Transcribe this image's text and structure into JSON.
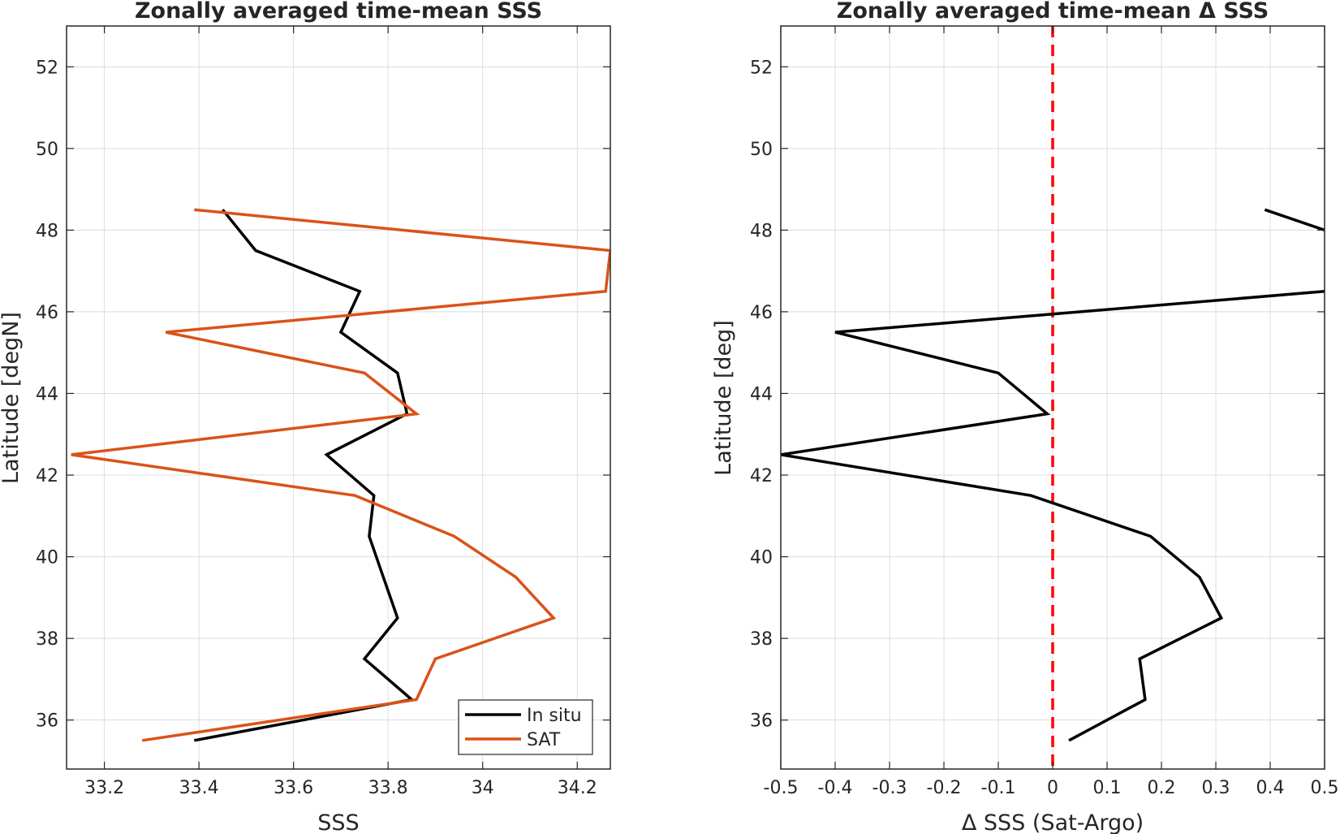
{
  "chart_data": [
    {
      "type": "line",
      "title": "Zonally averaged time-mean SSS",
      "xlabel": "SSS",
      "ylabel": "Latitude [degN]",
      "xlim": [
        33.12,
        34.27
      ],
      "ylim": [
        34.8,
        53.0
      ],
      "xticks": [
        33.2,
        33.4,
        33.6,
        33.8,
        34.0,
        34.2
      ],
      "xtick_labels": [
        "33.2",
        "33.4",
        "33.6",
        "33.8",
        "34",
        "34.2"
      ],
      "yticks": [
        36,
        38,
        40,
        42,
        44,
        46,
        48,
        50,
        52
      ],
      "ytick_labels": [
        "36",
        "38",
        "40",
        "42",
        "44",
        "46",
        "48",
        "50",
        "52"
      ],
      "grid": true,
      "legend_position": "bottom-right",
      "series": [
        {
          "name": "In situ",
          "color": "#000000",
          "y": [
            35.5,
            36.5,
            37.5,
            38.5,
            39.5,
            40.5,
            41.5,
            42.5,
            43.5,
            44.5,
            45.5,
            46.5,
            47.5,
            48.5
          ],
          "x": [
            33.39,
            33.85,
            33.75,
            33.82,
            33.79,
            33.76,
            33.77,
            33.67,
            33.84,
            33.82,
            33.7,
            33.74,
            33.52,
            33.45
          ]
        },
        {
          "name": "SAT",
          "color": "#D95319",
          "y": [
            35.5,
            36.5,
            37.5,
            38.5,
            39.5,
            40.5,
            41.5,
            42.5,
            43.5,
            44.5,
            45.5,
            46.5,
            47.5,
            48.5
          ],
          "x": [
            33.28,
            33.86,
            33.9,
            34.15,
            34.07,
            33.94,
            33.73,
            33.13,
            33.86,
            33.75,
            33.33,
            34.26,
            34.27,
            33.39
          ]
        }
      ]
    },
    {
      "type": "line",
      "title": "Zonally averaged time-mean Δ SSS",
      "xlabel": "Δ SSS (Sat-Argo)",
      "ylabel": "Latitude [deg]",
      "xlim": [
        -0.5,
        0.5
      ],
      "ylim": [
        34.8,
        53.0
      ],
      "xticks": [
        -0.5,
        -0.4,
        -0.3,
        -0.2,
        -0.1,
        0,
        0.1,
        0.2,
        0.3,
        0.4,
        0.5
      ],
      "xtick_labels": [
        "-0.5",
        "-0.4",
        "-0.3",
        "-0.2",
        "-0.1",
        "0",
        "0.1",
        "0.2",
        "0.3",
        "0.4",
        "0.5"
      ],
      "yticks": [
        36,
        38,
        40,
        42,
        44,
        46,
        48,
        50,
        52
      ],
      "ytick_labels": [
        "36",
        "38",
        "40",
        "42",
        "44",
        "46",
        "48",
        "50",
        "52"
      ],
      "grid": true,
      "reference_line": {
        "x": 0,
        "color": "#FF0000",
        "style": "dashed"
      },
      "series": [
        {
          "color": "#000000",
          "y": [
            35.5,
            36.5,
            37.5,
            38.5,
            39.5,
            40.5,
            41.5,
            42.5,
            43.5,
            44.5,
            45.5,
            46.5
          ],
          "x": [
            0.03,
            0.17,
            0.16,
            0.31,
            0.27,
            0.18,
            -0.04,
            -0.5,
            -0.01,
            -0.1,
            -0.4,
            0.5
          ]
        },
        {
          "color": "#000000",
          "y": [
            48.0,
            48.5
          ],
          "x": [
            0.5,
            0.39
          ]
        }
      ]
    }
  ]
}
